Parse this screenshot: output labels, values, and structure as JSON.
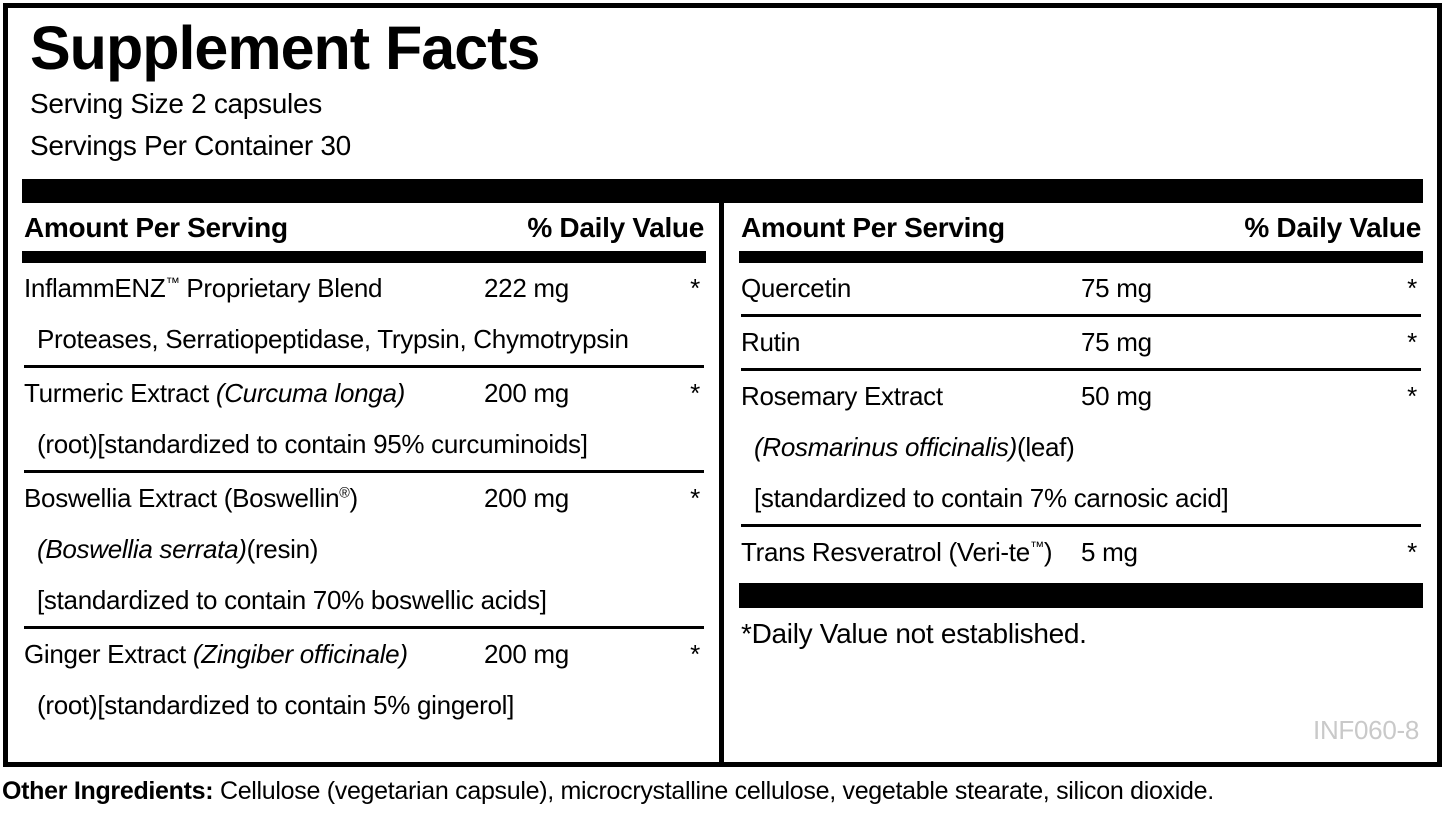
{
  "label": {
    "title": "Supplement Facts",
    "serving_size": "Serving Size 2 capsules",
    "servings_per_container": "Servings Per Container 30",
    "column_header": {
      "amount": "Amount Per Serving",
      "daily_value": "% Daily Value"
    },
    "columns": [
      {
        "rows": [
          {
            "name": [
              {
                "t": "InflammENZ"
              },
              {
                "t": "™",
                "sup": true
              },
              {
                "t": " Proprietary Blend"
              }
            ],
            "amount": "222 mg",
            "daily_value": "*",
            "sublines": [
              [
                {
                  "t": "Proteases, Serratiopeptidase, Trypsin, Chymotrypsin"
                }
              ]
            ]
          },
          {
            "name": [
              {
                "t": "Turmeric Extract "
              },
              {
                "t": "(Curcuma longa)",
                "i": true
              }
            ],
            "amount": "200 mg",
            "daily_value": "*",
            "sublines": [
              [
                {
                  "t": "(root)[standardized to contain 95% curcuminoids]"
                }
              ]
            ]
          },
          {
            "name": [
              {
                "t": "Boswellia Extract (Boswellin"
              },
              {
                "t": "®",
                "sup": true
              },
              {
                "t": ")"
              }
            ],
            "amount": "200 mg",
            "daily_value": "*",
            "sublines": [
              [
                {
                  "t": "(Boswellia serrata)",
                  "i": true
                },
                {
                  "t": "(resin)"
                }
              ],
              [
                {
                  "t": "[standardized to contain 70% boswellic acids]"
                }
              ]
            ]
          },
          {
            "name": [
              {
                "t": "Ginger Extract "
              },
              {
                "t": "(Zingiber officinale)",
                "i": true
              }
            ],
            "amount": "200 mg",
            "daily_value": "*",
            "sublines": [
              [
                {
                  "t": "(root)[standardized to contain 5% gingerol]"
                }
              ]
            ]
          }
        ]
      },
      {
        "rows": [
          {
            "name": [
              {
                "t": "Quercetin"
              }
            ],
            "amount": "75 mg",
            "daily_value": "*",
            "sublines": []
          },
          {
            "name": [
              {
                "t": "Rutin"
              }
            ],
            "amount": "75 mg",
            "daily_value": "*",
            "sublines": []
          },
          {
            "name": [
              {
                "t": "Rosemary Extract"
              }
            ],
            "amount": "50 mg",
            "daily_value": "*",
            "sublines": [
              [
                {
                  "t": "(Rosmarinus officinalis)",
                  "i": true
                },
                {
                  "t": "(leaf)"
                }
              ],
              [
                {
                  "t": "[standardized to contain 7% carnosic acid]"
                }
              ]
            ]
          },
          {
            "name": [
              {
                "t": "Trans Resveratrol (Veri-te"
              },
              {
                "t": "™",
                "sup": true
              },
              {
                "t": ")"
              }
            ],
            "amount": "5 mg",
            "daily_value": "*",
            "sublines": []
          }
        ],
        "footnote": "*Daily Value not established.",
        "code": "INF060-8"
      }
    ]
  },
  "other_ingredients": {
    "label": "Other Ingredients:",
    "text": " Cellulose (vegetarian capsule), microcrystalline cellulose, vegetable stearate, silicon dioxide."
  },
  "colors": {
    "ink": "#000000",
    "paper": "#ffffff",
    "code_gray": "#c9c9c9"
  }
}
